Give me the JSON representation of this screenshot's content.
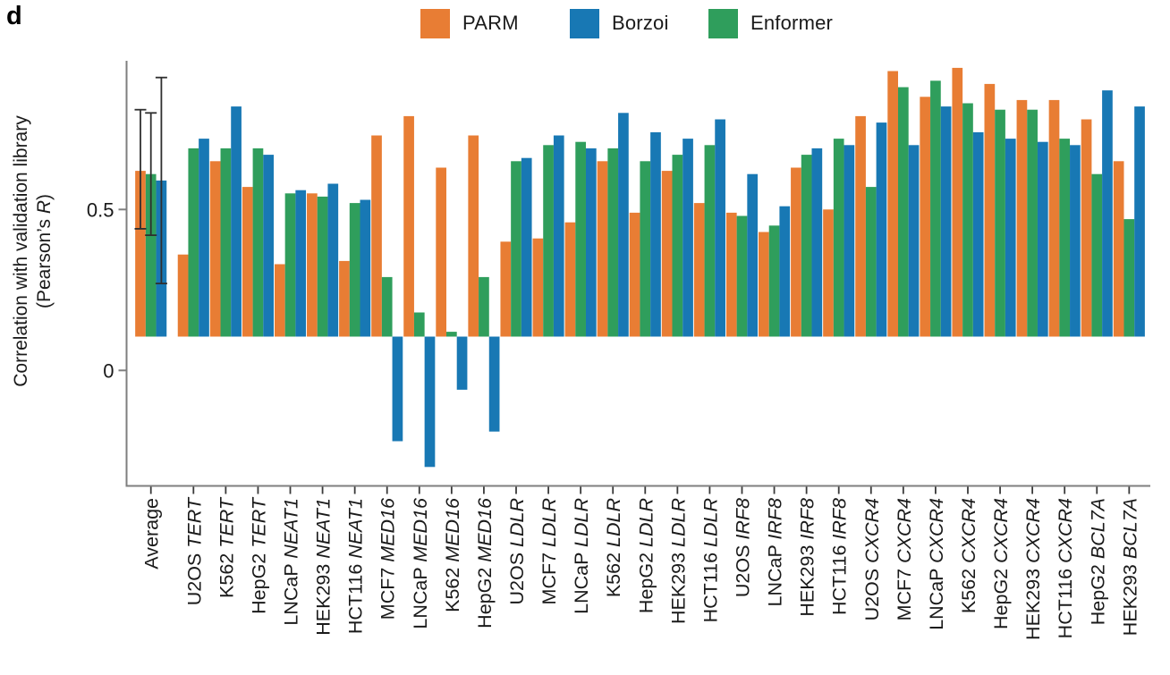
{
  "panel_label": "d",
  "legend": {
    "items": [
      {
        "label": "PARM",
        "color": "#e87d34"
      },
      {
        "label": "Borzoi",
        "color": "#1878b4"
      },
      {
        "label": "Enformer",
        "color": "#2f9e5c"
      }
    ]
  },
  "ylabel": {
    "line1": "Correlation with validation library",
    "line2_prefix": "(Pearson’s ",
    "line2_italic": "R",
    "line2_suffix": ")"
  },
  "chart_data": {
    "type": "bar",
    "title": "",
    "xlabel": "",
    "ylabel": "Correlation with validation library (Pearson's R)",
    "categories": [
      {
        "cell": "Average",
        "gene": ""
      },
      {
        "cell": "U2OS",
        "gene": "TERT"
      },
      {
        "cell": "K562",
        "gene": "TERT"
      },
      {
        "cell": "HepG2",
        "gene": "TERT"
      },
      {
        "cell": "LNCaP",
        "gene": "NEAT1"
      },
      {
        "cell": "HEK293",
        "gene": "NEAT1"
      },
      {
        "cell": "HCT116",
        "gene": "NEAT1"
      },
      {
        "cell": "MCF7",
        "gene": "MED16"
      },
      {
        "cell": "LNCaP",
        "gene": "MED16"
      },
      {
        "cell": "K562",
        "gene": "MED16"
      },
      {
        "cell": "HepG2",
        "gene": "MED16"
      },
      {
        "cell": "U2OS",
        "gene": "LDLR"
      },
      {
        "cell": "MCF7",
        "gene": "LDLR"
      },
      {
        "cell": "LNCaP",
        "gene": "LDLR"
      },
      {
        "cell": "K562",
        "gene": "LDLR"
      },
      {
        "cell": "HepG2",
        "gene": "LDLR"
      },
      {
        "cell": "HEK293",
        "gene": "LDLR"
      },
      {
        "cell": "HCT116",
        "gene": "LDLR"
      },
      {
        "cell": "U2OS",
        "gene": "IRF8"
      },
      {
        "cell": "LNCaP",
        "gene": "IRF8"
      },
      {
        "cell": "HEK293",
        "gene": "IRF8"
      },
      {
        "cell": "HCT116",
        "gene": "IRF8"
      },
      {
        "cell": "U2OS",
        "gene": "CXCR4"
      },
      {
        "cell": "MCF7",
        "gene": "CXCR4"
      },
      {
        "cell": "LNCaP",
        "gene": "CXCR4"
      },
      {
        "cell": "K562",
        "gene": "CXCR4"
      },
      {
        "cell": "HepG2",
        "gene": "CXCR4"
      },
      {
        "cell": "HEK293",
        "gene": "CXCR4"
      },
      {
        "cell": "HCT116",
        "gene": "CXCR4"
      },
      {
        "cell": "HepG2",
        "gene": "BCL7A"
      },
      {
        "cell": "HEK293",
        "gene": "BCL7A"
      }
    ],
    "series": [
      {
        "name": "PARM",
        "color": "#e87d34",
        "values": [
          0.62,
          0.36,
          0.65,
          0.57,
          0.33,
          0.55,
          0.34,
          0.73,
          0.79,
          0.63,
          0.73,
          0.4,
          0.41,
          0.46,
          0.65,
          0.49,
          0.62,
          0.52,
          0.49,
          0.43,
          0.63,
          0.5,
          0.79,
          0.93,
          0.85,
          0.94,
          0.89,
          0.84,
          0.84,
          0.78,
          0.65
        ]
      },
      {
        "name": "Borzoi",
        "color": "#1878b4",
        "values": [
          0.59,
          0.72,
          0.82,
          0.67,
          0.56,
          0.58,
          0.53,
          -0.22,
          -0.3,
          -0.06,
          -0.19,
          0.66,
          0.73,
          0.69,
          0.8,
          0.74,
          0.72,
          0.78,
          0.61,
          0.51,
          0.69,
          0.7,
          0.77,
          0.7,
          0.82,
          0.74,
          0.72,
          0.71,
          0.7,
          0.87,
          0.82
        ]
      },
      {
        "name": "Enformer",
        "color": "#2f9e5c",
        "values": [
          0.61,
          0.69,
          0.69,
          0.69,
          0.55,
          0.54,
          0.52,
          0.29,
          0.18,
          0.12,
          0.29,
          0.65,
          0.7,
          0.71,
          0.69,
          0.65,
          0.67,
          0.7,
          0.48,
          0.45,
          0.67,
          0.72,
          0.57,
          0.88,
          0.9,
          0.83,
          0.81,
          0.81,
          0.72,
          0.61,
          0.47
        ]
      }
    ],
    "average_error_bars": {
      "PARM": [
        0.44,
        0.81
      ],
      "Borzoi": [
        0.27,
        0.91
      ],
      "Enformer": [
        0.42,
        0.8
      ]
    },
    "yticks": [
      {
        "label": "0.5",
        "value": 0.5
      },
      {
        "label": "0",
        "value": 0
      }
    ],
    "ylim": [
      -0.36,
      0.96
    ],
    "bar_baseline": 0.105,
    "within_group_draw_order": [
      "PARM",
      "Enformer",
      "Borzoi"
    ],
    "legend_position": "top-center",
    "grid": false
  }
}
